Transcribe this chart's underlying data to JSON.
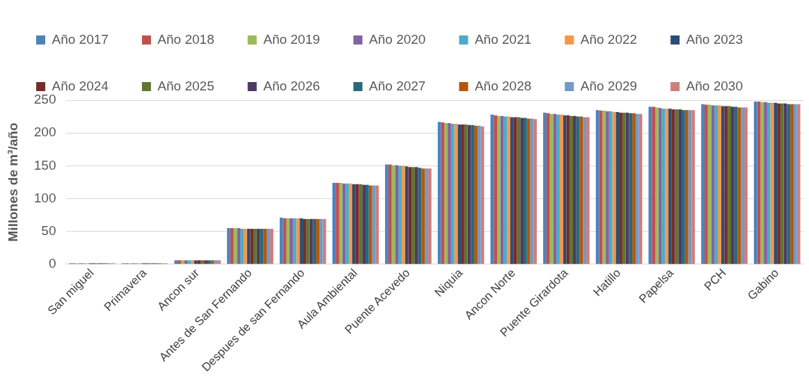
{
  "chart_data": {
    "type": "bar",
    "ylabel": "Millones de m³/año",
    "categories": [
      "San miguel",
      "Primavera",
      "Ancon sur",
      "Antes de San Fernando",
      "Despues de san Fernando",
      "Aula Ambiental",
      "Puente Acevedo",
      "Niquia",
      "Ancon Norte",
      "Puente Girardota",
      "Hatillo",
      "Papelsa",
      "PCH",
      "Gabino"
    ],
    "series": [
      {
        "name": "Año 2017",
        "color": "#4f81bd",
        "values": [
          1.5,
          1.5,
          6,
          55,
          71,
          124,
          152,
          217,
          228,
          231,
          235,
          240,
          244,
          248
        ]
      },
      {
        "name": "Año 2018",
        "color": "#c0504d",
        "values": [
          1.5,
          1.5,
          6,
          55,
          70,
          124,
          152,
          216,
          227,
          230,
          234,
          240,
          243,
          248
        ]
      },
      {
        "name": "Año 2019",
        "color": "#9bbb59",
        "values": [
          1.5,
          1.5,
          6,
          55,
          70,
          124,
          151,
          215,
          226,
          229,
          234,
          239,
          243,
          247
        ]
      },
      {
        "name": "Año 2020",
        "color": "#8064a2",
        "values": [
          1.5,
          1.5,
          6,
          55,
          70,
          123,
          151,
          215,
          226,
          229,
          233,
          238,
          242,
          247
        ]
      },
      {
        "name": "Año 2021",
        "color": "#4bacc6",
        "values": [
          1.5,
          1.5,
          6,
          54,
          70,
          123,
          150,
          214,
          225,
          228,
          233,
          237,
          242,
          246
        ]
      },
      {
        "name": "Año 2022",
        "color": "#f79646",
        "values": [
          1.5,
          1.5,
          6,
          54,
          70,
          123,
          150,
          214,
          225,
          228,
          232,
          237,
          242,
          246
        ]
      },
      {
        "name": "Año 2023",
        "color": "#2c4d75",
        "values": [
          1.5,
          1.5,
          6,
          54,
          70,
          122,
          149,
          213,
          224,
          227,
          232,
          237,
          241,
          246
        ]
      },
      {
        "name": "Año 2024",
        "color": "#772c2a",
        "values": [
          1.5,
          1.5,
          6,
          54,
          69,
          122,
          148,
          213,
          224,
          227,
          231,
          236,
          241,
          245
        ]
      },
      {
        "name": "Año 2025",
        "color": "#5f7530",
        "values": [
          1.5,
          1.5,
          6,
          54,
          69,
          122,
          148,
          213,
          224,
          226,
          231,
          236,
          241,
          245
        ]
      },
      {
        "name": "Año 2026",
        "color": "#4d3b62",
        "values": [
          1.5,
          1.5,
          6,
          54,
          69,
          121,
          148,
          212,
          223,
          226,
          231,
          236,
          240,
          245
        ]
      },
      {
        "name": "Año 2027",
        "color": "#276a7c",
        "values": [
          1.5,
          1.5,
          6,
          54,
          69,
          121,
          147,
          212,
          223,
          225,
          230,
          235,
          240,
          244
        ]
      },
      {
        "name": "Año 2028",
        "color": "#b65708",
        "values": [
          1.5,
          1.5,
          6,
          54,
          69,
          120,
          146,
          211,
          222,
          225,
          230,
          235,
          239,
          244
        ]
      },
      {
        "name": "Año 2029",
        "color": "#729aca",
        "values": [
          1.5,
          1.5,
          6,
          54,
          69,
          120,
          146,
          211,
          222,
          224,
          229,
          235,
          239,
          244
        ]
      },
      {
        "name": "Año 2030",
        "color": "#d07e7b",
        "values": [
          1.5,
          1.5,
          6,
          54,
          69,
          120,
          146,
          210,
          221,
          224,
          229,
          235,
          239,
          244
        ]
      }
    ],
    "ylim": [
      0,
      250
    ],
    "yticks": [
      0,
      50,
      100,
      150,
      200,
      250
    ],
    "grid": "y",
    "legend": "top"
  }
}
